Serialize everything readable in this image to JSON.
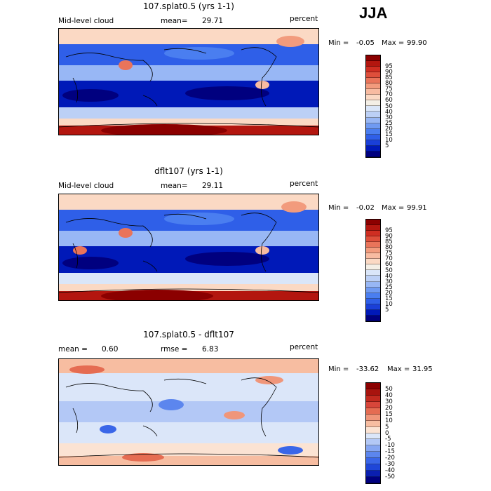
{
  "season": "JJA",
  "colors": {
    "abs": [
      "#00007f",
      "#0019b8",
      "#1a3fd8",
      "#2f5fe8",
      "#4a7ef0",
      "#6f9af2",
      "#98b7f5",
      "#bcd0f6",
      "#dae6f9",
      "#f4efe6",
      "#fbd9c4",
      "#f8bba1",
      "#f29b7d",
      "#e9745a",
      "#de4f3b",
      "#cf2e22",
      "#b3160f",
      "#8b0000"
    ],
    "diff": [
      "#00007f",
      "#0a1fb0",
      "#1f46d8",
      "#3a66e8",
      "#5c86ee",
      "#86a6f2",
      "#b3c8f6",
      "#dbe6f9",
      "#fbe3d3",
      "#f7bda1",
      "#f0967a",
      "#e56c52",
      "#d8463a",
      "#c22a1f",
      "#a8140e",
      "#8b0000"
    ]
  },
  "panels": [
    {
      "title": "107.splat0.5 (yrs 1-1)",
      "left_label": "Mid-level cloud",
      "mean_label": "mean=",
      "mean": "29.71",
      "units": "percent",
      "min_label": "Min =",
      "min": "-0.05",
      "max_label": "Max =",
      "max": "99.90",
      "colorbar_labels": [
        "95",
        "90",
        "85",
        "80",
        "75",
        "70",
        "60",
        "50",
        "40",
        "30",
        "25",
        "20",
        "15",
        "10",
        "5"
      ]
    },
    {
      "title": "dflt107 (yrs 1-1)",
      "left_label": "Mid-level cloud",
      "mean_label": "mean=",
      "mean": "29.11",
      "units": "percent",
      "min_label": "Min =",
      "min": "-0.02",
      "max_label": "Max =",
      "max": "99.91",
      "colorbar_labels": [
        "95",
        "90",
        "85",
        "80",
        "75",
        "70",
        "60",
        "50",
        "40",
        "30",
        "25",
        "20",
        "15",
        "10",
        "5"
      ]
    },
    {
      "title": "107.splat0.5 - dflt107",
      "left_label": "mean =",
      "mean": "0.60",
      "rmse_label": "rmse =",
      "rmse": "6.83",
      "units": "percent",
      "min_label": "Min =",
      "min": "-33.62",
      "max_label": "Max =",
      "max": "31.95",
      "colorbar_labels": [
        "50",
        "40",
        "30",
        "20",
        "15",
        "10",
        "5",
        "0",
        "-5",
        "-10",
        "-15",
        "-20",
        "-30",
        "-40",
        "-50"
      ]
    }
  ],
  "chart_data": [
    {
      "type": "heatmap",
      "title": "107.splat0.5 (yrs 1-1)",
      "variable": "Mid-level cloud",
      "units": "percent",
      "mean": 29.71,
      "min": -0.05,
      "max": 99.9,
      "levels": [
        5,
        10,
        15,
        20,
        25,
        30,
        40,
        50,
        60,
        70,
        75,
        80,
        85,
        90,
        95
      ]
    },
    {
      "type": "heatmap",
      "title": "dflt107 (yrs 1-1)",
      "variable": "Mid-level cloud",
      "units": "percent",
      "mean": 29.11,
      "min": -0.02,
      "max": 99.91,
      "levels": [
        5,
        10,
        15,
        20,
        25,
        30,
        40,
        50,
        60,
        70,
        75,
        80,
        85,
        90,
        95
      ]
    },
    {
      "type": "heatmap",
      "title": "107.splat0.5 - dflt107",
      "units": "percent",
      "mean": 0.6,
      "rmse": 6.83,
      "min": -33.62,
      "max": 31.95,
      "levels": [
        -50,
        -40,
        -30,
        -20,
        -15,
        -10,
        -5,
        0,
        5,
        10,
        15,
        20,
        30,
        40,
        50
      ]
    }
  ]
}
